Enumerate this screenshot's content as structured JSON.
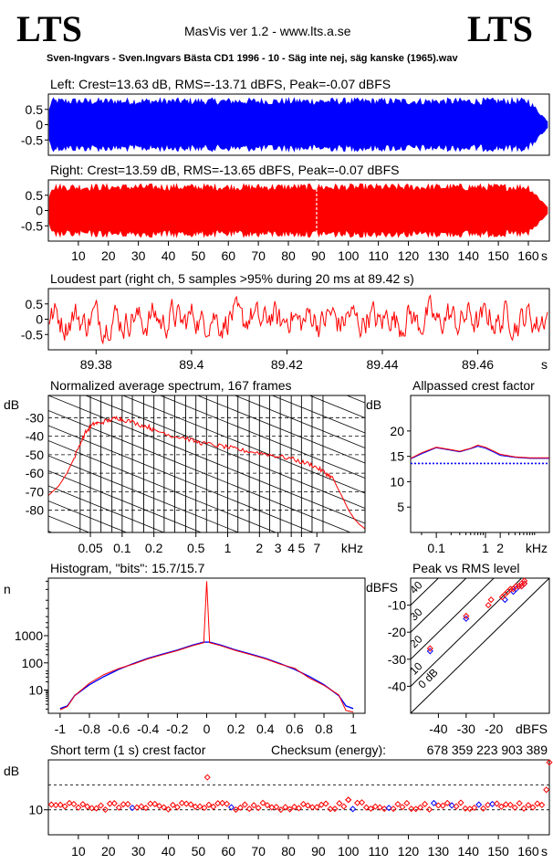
{
  "header": {
    "logo_left": "LTS",
    "logo_right": "LTS",
    "version": "MasVis ver 1.2 - www.lts.a.se",
    "filename": "Sven-Ingvars - Sven.Ingvars Bästa CD1 1996 - 10 - Säg inte nej, säg kanske (1965).wav"
  },
  "colors": {
    "left": "#0000ff",
    "right": "#ff0000",
    "axis": "#000000",
    "grid": "#000000"
  },
  "chart_data": [
    {
      "id": "left_waveform",
      "type": "area",
      "title": "Left: Crest=13.63 dB, RMS=-13.71 dBFS, Peak=-0.07 dBFS",
      "ylim": [
        -1,
        1
      ],
      "xlim": [
        0,
        167
      ],
      "yticks": [
        0.5,
        0,
        -0.5
      ],
      "ytick_labels": [
        "0.5",
        "0",
        "-0.5"
      ],
      "crest_db": 13.63,
      "rms_dbfs": -13.71,
      "peak_dbfs": -0.07
    },
    {
      "id": "right_waveform",
      "type": "area",
      "title": "Right: Crest=13.59 dB, RMS=-13.65 dBFS, Peak=-0.07 dBFS",
      "ylim": [
        -1,
        1
      ],
      "xlim": [
        0,
        167
      ],
      "yticks": [
        0.5,
        0,
        -0.5
      ],
      "ytick_labels": [
        "0.5",
        "0",
        "-0.5"
      ],
      "xticks": [
        10,
        20,
        30,
        40,
        50,
        60,
        70,
        80,
        90,
        100,
        110,
        120,
        130,
        140,
        150,
        160
      ],
      "xtick_labels": [
        "10",
        "20",
        "30",
        "40",
        "50",
        "60",
        "70",
        "80",
        "90",
        "100",
        "110",
        "120",
        "130",
        "140",
        "150",
        "160"
      ],
      "xunit": "s",
      "marker_x": 89.42,
      "crest_db": 13.59,
      "rms_dbfs": -13.65,
      "peak_dbfs": -0.07
    },
    {
      "id": "loudest_part",
      "type": "line",
      "title": "Loudest part (right ch, 5 samples >95% during 20 ms at 89.42 s)",
      "xlim": [
        89.37,
        89.475
      ],
      "ylim": [
        -1,
        1
      ],
      "yticks": [
        0.5,
        0,
        -0.5
      ],
      "ytick_labels": [
        "0.5",
        "0",
        "-0.5"
      ],
      "xticks": [
        89.38,
        89.4,
        89.42,
        89.44,
        89.46
      ],
      "xtick_labels": [
        "89.38",
        "89.4",
        "89.42",
        "89.44",
        "89.46"
      ],
      "xunit": "s"
    },
    {
      "id": "spectrum",
      "type": "line",
      "title": "Normalized average spectrum, 167 frames",
      "ylabel": "dB",
      "xunit": "kHz",
      "xlog": true,
      "xlim": [
        0.02,
        20
      ],
      "ylim": [
        -92,
        -18
      ],
      "yticks": [
        -30,
        -40,
        -50,
        -60,
        -70,
        -80
      ],
      "ytick_labels": [
        "-30",
        "-40",
        "-50",
        "-60",
        "-70",
        "-80"
      ],
      "xticks": [
        0.05,
        0.1,
        0.2,
        0.5,
        1,
        2,
        3,
        4,
        5,
        7
      ],
      "xtick_labels": [
        "0.05",
        "0.1",
        "0.2",
        "0.5",
        "1",
        "2",
        "3",
        "4",
        "5",
        "7"
      ],
      "frames": 167,
      "series": [
        {
          "x": [
            0.02,
            0.025,
            0.03,
            0.035,
            0.04,
            0.045,
            0.05,
            0.055,
            0.06,
            0.07,
            0.08,
            0.09,
            0.1,
            0.12,
            0.15,
            0.18,
            0.2,
            0.25,
            0.3,
            0.4,
            0.5,
            0.6,
            0.8,
            1,
            1.2,
            1.5,
            2,
            2.5,
            3,
            4,
            5,
            6,
            7,
            8,
            9,
            10,
            11,
            12,
            14,
            16,
            18,
            20
          ],
          "y": [
            -72,
            -67,
            -60,
            -52,
            -44,
            -38,
            -35,
            -33,
            -33,
            -32,
            -31,
            -30,
            -31,
            -32,
            -34,
            -35,
            -37,
            -38,
            -40,
            -41,
            -43,
            -44,
            -45,
            -46,
            -47,
            -48,
            -49,
            -50,
            -51,
            -52,
            -54,
            -55,
            -57,
            -59,
            -61,
            -63,
            -68,
            -72,
            -80,
            -85,
            -88,
            -90
          ]
        }
      ]
    },
    {
      "id": "allpassed_crest",
      "type": "line",
      "title": "Allpassed crest factor",
      "ylabel": "dB",
      "xunit": "kHz",
      "xlog": true,
      "xlim": [
        0.03,
        20
      ],
      "ylim": [
        0,
        27
      ],
      "yticks": [
        20,
        15,
        10,
        5
      ],
      "ytick_labels": [
        "20",
        "15",
        "10",
        "5"
      ],
      "xticks": [
        0.1,
        1,
        2
      ],
      "xtick_labels": [
        "0.1",
        "1",
        "2"
      ],
      "reference_db": 13.6,
      "series": [
        {
          "name": "left",
          "x": [
            0.03,
            0.05,
            0.1,
            0.2,
            0.3,
            0.5,
            0.7,
            1,
            1.5,
            2,
            4,
            8,
            20
          ],
          "y": [
            14.5,
            15.5,
            16.7,
            16.2,
            15.9,
            16.5,
            17.0,
            16.6,
            15.8,
            15.2,
            14.8,
            14.6,
            14.6
          ]
        },
        {
          "name": "right",
          "x": [
            0.03,
            0.05,
            0.1,
            0.2,
            0.3,
            0.5,
            0.7,
            1,
            1.5,
            2,
            4,
            8,
            20
          ],
          "y": [
            14.6,
            15.7,
            16.8,
            16.3,
            16.0,
            16.6,
            17.2,
            16.8,
            16.0,
            15.4,
            14.9,
            14.7,
            14.7
          ]
        }
      ]
    },
    {
      "id": "histogram",
      "type": "line",
      "title": "Histogram, \"bits\": 15.7/15.7",
      "ylabel": "n",
      "ylog": true,
      "xlim": [
        -1.08,
        1.08
      ],
      "ylim": [
        1.4,
        130000
      ],
      "yticks": [
        1000,
        100,
        10
      ],
      "ytick_labels": [
        "1000",
        "100",
        "10"
      ],
      "xticks": [
        -1,
        -0.8,
        -0.6,
        -0.4,
        -0.2,
        0,
        0.2,
        0.4,
        0.6,
        0.8,
        1
      ],
      "xtick_labels": [
        "-1",
        "-0.8",
        "-0.6",
        "-0.4",
        "-0.2",
        "0",
        "0.2",
        "0.4",
        "0.6",
        "0.8",
        "1"
      ],
      "series": [
        {
          "x": [
            -1,
            -0.95,
            -0.9,
            -0.8,
            -0.7,
            -0.6,
            -0.5,
            -0.4,
            -0.3,
            -0.2,
            -0.1,
            -0.02,
            0,
            0.02,
            0.1,
            0.2,
            0.3,
            0.4,
            0.5,
            0.6,
            0.7,
            0.8,
            0.9,
            0.95,
            1
          ],
          "y": [
            2,
            2.5,
            6,
            15,
            30,
            55,
            90,
            140,
            200,
            280,
            420,
            550,
            100000,
            550,
            420,
            280,
            200,
            140,
            90,
            55,
            30,
            15,
            6,
            2.5,
            2
          ]
        }
      ]
    },
    {
      "id": "peak_vs_rms",
      "type": "scatter",
      "title": "Peak vs RMS level",
      "ylabel": "dBFS",
      "xlabel": "dBFS",
      "xlim": [
        -50,
        0
      ],
      "ylim": [
        -50,
        0
      ],
      "yticks": [
        -10,
        -20,
        -30,
        -40
      ],
      "ytick_labels": [
        "-10",
        "-20",
        "-30",
        "-40"
      ],
      "xticks": [
        -40,
        -30,
        -20
      ],
      "xtick_labels": [
        "-40",
        "-30",
        "-20"
      ],
      "diagonal_labels": [
        "40",
        "30",
        "20",
        "10",
        "0 dB"
      ],
      "series": [
        {
          "name": "left",
          "x": [
            -43,
            -30,
            -16,
            -13,
            -12,
            -11,
            -10,
            -9
          ],
          "y": [
            -27,
            -15,
            -8,
            -5,
            -4,
            -3,
            -3,
            -2
          ]
        },
        {
          "name": "right",
          "x": [
            -43,
            -30,
            -22,
            -21,
            -17,
            -16,
            -15,
            -14,
            -13,
            -12,
            -11,
            -10,
            -10,
            -9,
            -9
          ],
          "y": [
            -26,
            -14,
            -10,
            -8,
            -7,
            -6,
            -5,
            -4,
            -4,
            -3,
            -3,
            -3,
            -2,
            -2,
            -1
          ]
        }
      ]
    },
    {
      "id": "short_term_crest",
      "type": "scatter",
      "title": "Short term (1 s) crest factor",
      "checksum_label": "Checksum (energy):",
      "checksum_value": "678 359 223 903 389",
      "ylabel": "dB",
      "xlim": [
        0,
        167
      ],
      "ylim": [
        0,
        30
      ],
      "yticks": [
        10
      ],
      "ytick_labels": [
        "10"
      ],
      "xticks": [
        10,
        20,
        30,
        40,
        50,
        60,
        70,
        80,
        90,
        100,
        110,
        120,
        130,
        140,
        150,
        160
      ],
      "xtick_labels": [
        "10",
        "20",
        "30",
        "40",
        "50",
        "60",
        "70",
        "80",
        "90",
        "100",
        "110",
        "120",
        "130",
        "140",
        "150",
        "160"
      ],
      "xunit": "s",
      "typical_db": 11.5,
      "outliers": [
        [
          53,
          23
        ],
        [
          100,
          14
        ],
        [
          166,
          18
        ],
        [
          167,
          29
        ]
      ]
    }
  ]
}
